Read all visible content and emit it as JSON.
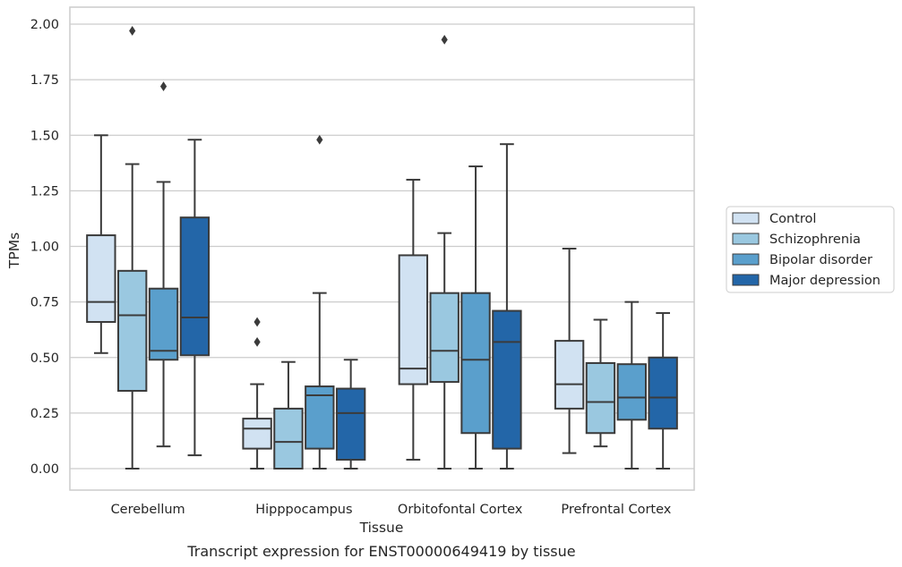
{
  "chart_data": {
    "type": "boxplot",
    "xlabel": "Tissue",
    "ylabel": "TPMs",
    "caption": "Transcript expression for ENST00000649419 by tissue",
    "ylim": [
      -0.1,
      2.07
    ],
    "yticks": [
      "0.00",
      "0.25",
      "0.50",
      "0.75",
      "1.00",
      "1.25",
      "1.50",
      "1.75",
      "2.00"
    ],
    "grid": "horizontal",
    "legend_position": "right",
    "categories": [
      "Cerebellum",
      "Hipppocampus",
      "Orbitofontal Cortex",
      "Prefrontal Cortex"
    ],
    "series": [
      {
        "name": "Control",
        "color": "#d1e2f2",
        "boxes": [
          {
            "whislo": 0.52,
            "q1": 0.66,
            "med": 0.75,
            "q3": 1.05,
            "whishi": 1.5,
            "fliers": []
          },
          {
            "whislo": 0.0,
            "q1": 0.09,
            "med": 0.18,
            "q3": 0.225,
            "whishi": 0.38,
            "fliers": [
              0.57,
              0.66
            ]
          },
          {
            "whislo": 0.04,
            "q1": 0.38,
            "med": 0.45,
            "q3": 0.96,
            "whishi": 1.3,
            "fliers": []
          },
          {
            "whislo": 0.07,
            "q1": 0.27,
            "med": 0.38,
            "q3": 0.575,
            "whishi": 0.99,
            "fliers": []
          }
        ]
      },
      {
        "name": "Schizophrenia",
        "color": "#9ac8e0",
        "boxes": [
          {
            "whislo": 0.0,
            "q1": 0.35,
            "med": 0.69,
            "q3": 0.89,
            "whishi": 1.37,
            "fliers": [
              1.97
            ]
          },
          {
            "whislo": 0.0,
            "q1": 0.0,
            "med": 0.12,
            "q3": 0.27,
            "whishi": 0.48,
            "fliers": []
          },
          {
            "whislo": 0.0,
            "q1": 0.39,
            "med": 0.53,
            "q3": 0.79,
            "whishi": 1.06,
            "fliers": [
              1.93
            ]
          },
          {
            "whislo": 0.1,
            "q1": 0.16,
            "med": 0.3,
            "q3": 0.475,
            "whishi": 0.67,
            "fliers": []
          }
        ]
      },
      {
        "name": "Bipolar disorder",
        "color": "#5a9fcc",
        "boxes": [
          {
            "whislo": 0.1,
            "q1": 0.49,
            "med": 0.53,
            "q3": 0.81,
            "whishi": 1.29,
            "fliers": [
              1.72
            ]
          },
          {
            "whislo": 0.0,
            "q1": 0.09,
            "med": 0.33,
            "q3": 0.37,
            "whishi": 0.79,
            "fliers": [
              1.48
            ]
          },
          {
            "whislo": 0.0,
            "q1": 0.16,
            "med": 0.49,
            "q3": 0.79,
            "whishi": 1.36,
            "fliers": []
          },
          {
            "whislo": 0.0,
            "q1": 0.22,
            "med": 0.32,
            "q3": 0.47,
            "whishi": 0.75,
            "fliers": []
          }
        ]
      },
      {
        "name": "Major depression",
        "color": "#2366a8",
        "boxes": [
          {
            "whislo": 0.06,
            "q1": 0.51,
            "med": 0.68,
            "q3": 1.13,
            "whishi": 1.48,
            "fliers": []
          },
          {
            "whislo": 0.0,
            "q1": 0.04,
            "med": 0.25,
            "q3": 0.36,
            "whishi": 0.49,
            "fliers": []
          },
          {
            "whislo": 0.0,
            "q1": 0.09,
            "med": 0.57,
            "q3": 0.71,
            "whishi": 1.46,
            "fliers": []
          },
          {
            "whislo": 0.0,
            "q1": 0.18,
            "med": 0.32,
            "q3": 0.5,
            "whishi": 0.7,
            "fliers": []
          }
        ]
      }
    ]
  },
  "style": {
    "edge_color": "#3b3b3b",
    "grid_color": "#cccccc",
    "frame_color": "#cccccc"
  }
}
